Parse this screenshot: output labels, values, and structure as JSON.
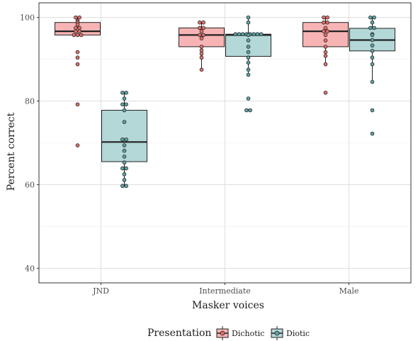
{
  "chart_data": {
    "type": "box",
    "xlabel": "Masker voices",
    "ylabel": "Percent correct",
    "ylim": [
      36.5,
      103.5
    ],
    "yticks": [
      40,
      60,
      80,
      100
    ],
    "grid": true,
    "legend_position": "bottom",
    "categories": [
      "JND",
      "Intermediate",
      "Male"
    ],
    "legend": {
      "title": "Presentation",
      "entries": [
        {
          "label": "Dichotic",
          "fill": "#F8B4B4",
          "point": "#E0706A"
        },
        {
          "label": "Diotic",
          "fill": "#B4D7D7",
          "point": "#5FA3A3"
        }
      ]
    },
    "series": [
      {
        "name": "Dichotic",
        "boxes": [
          {
            "category": "JND",
            "min": 95.8,
            "q1": 95.8,
            "median": 96.7,
            "q3": 98.8,
            "max": 100
          },
          {
            "category": "Intermediate",
            "min": 87.5,
            "q1": 93.0,
            "median": 95.8,
            "q3": 97.5,
            "max": 98.8
          },
          {
            "category": "Male",
            "min": 88.8,
            "q1": 93.0,
            "median": 96.7,
            "q3": 98.8,
            "max": 100
          }
        ],
        "points": [
          {
            "category": "JND",
            "values": [
              100,
              100,
              99.2,
              98.8,
              98.3,
              97.5,
              97.5,
              96.7,
              96.7,
              95.8,
              95.8,
              95.8,
              91.7,
              90.4,
              88.8,
              79.2,
              69.4
            ]
          },
          {
            "category": "Intermediate",
            "values": [
              98.8,
              98.8,
              97.5,
              97.5,
              96.7,
              95.8,
              95.8,
              95.0,
              93.0,
              92.1,
              91.3,
              90.4,
              87.5
            ]
          },
          {
            "category": "Male",
            "values": [
              100,
              100,
              98.8,
              98.8,
              97.5,
              96.7,
              96.7,
              95.8,
              94.5,
              93.0,
              91.7,
              90.8,
              88.8,
              82.0
            ]
          }
        ]
      },
      {
        "name": "Diotic",
        "boxes": [
          {
            "category": "JND",
            "min": 59.7,
            "q1": 65.5,
            "median": 70.2,
            "q3": 77.8,
            "max": 82.0
          },
          {
            "category": "Intermediate",
            "min": 86.3,
            "q1": 90.7,
            "median": 95.8,
            "q3": 96.0,
            "max": 100
          },
          {
            "category": "Male",
            "min": 84.6,
            "q1": 92.0,
            "median": 94.6,
            "q3": 97.4,
            "max": 100
          }
        ],
        "points": [
          {
            "category": "JND",
            "values": [
              82.0,
              82.0,
              80.6,
              79.2,
              79.2,
              77.8,
              75.0,
              70.8,
              70.8,
              69.4,
              68.1,
              66.7,
              65.3,
              63.9,
              63.9,
              62.5,
              61.1,
              59.7,
              59.7
            ]
          },
          {
            "category": "Intermediate",
            "values": [
              100,
              98.8,
              96.0,
              96.0,
              96.0,
              96.0,
              96.0,
              96.0,
              96.0,
              96.0,
              95.8,
              94.5,
              93.0,
              91.7,
              90.4,
              89.2,
              87.5,
              86.3,
              80.6,
              77.8,
              77.8
            ]
          },
          {
            "category": "Male",
            "values": [
              100,
              100,
              98.8,
              97.5,
              97.5,
              96.0,
              95.8,
              94.6,
              93.3,
              92.0,
              90.4,
              88.8,
              84.6,
              77.8,
              72.2
            ]
          }
        ]
      }
    ]
  }
}
